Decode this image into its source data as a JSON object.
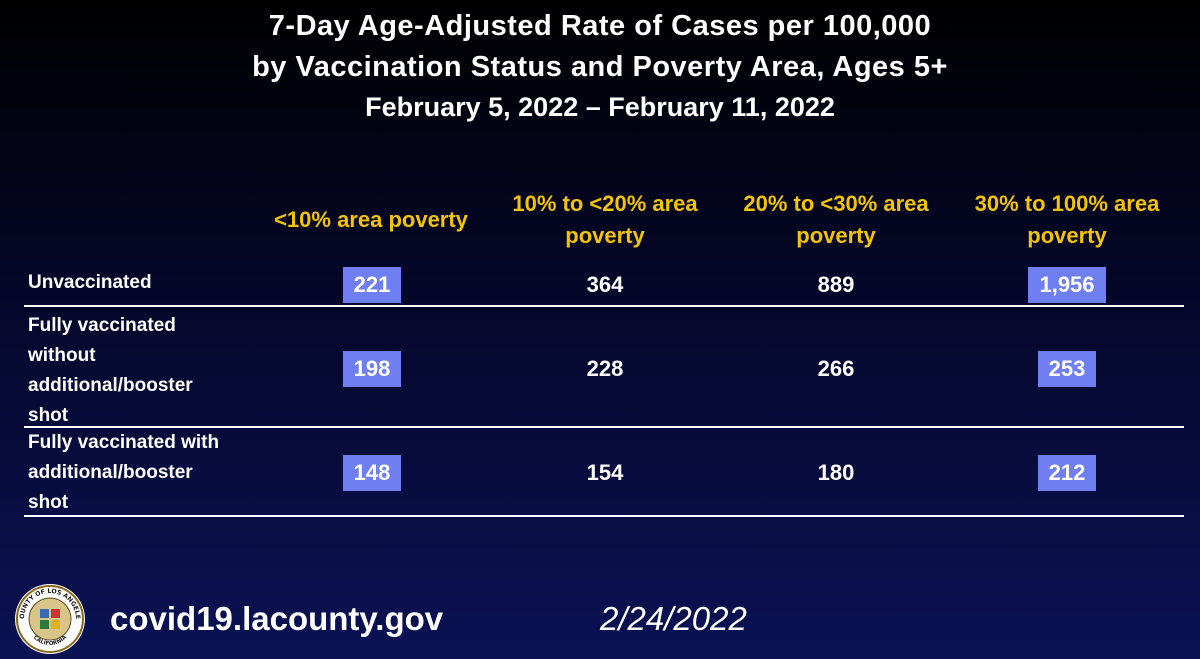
{
  "title": {
    "line1": "7-Day Age-Adjusted Rate of Cases per 100,000",
    "line2": "by Vaccination Status and Poverty Area, Ages 5+",
    "line3": "February 5, 2022 – February 11, 2022"
  },
  "columns": [
    {
      "line1": "<10% area poverty",
      "line2": ""
    },
    {
      "line1": "10% to <20% area",
      "line2": "poverty"
    },
    {
      "line1": "20% to <30% area",
      "line2": "poverty"
    },
    {
      "line1": "30% to 100% area",
      "line2": "poverty"
    }
  ],
  "rows": [
    {
      "label_lines": [
        "Unvaccinated"
      ],
      "values": [
        "221",
        "364",
        "889",
        "1,956"
      ],
      "highlighted": [
        true,
        false,
        false,
        true
      ]
    },
    {
      "label_lines": [
        "Fully vaccinated",
        "without",
        "additional/booster",
        "shot"
      ],
      "values": [
        "198",
        "228",
        "266",
        "253"
      ],
      "highlighted": [
        true,
        false,
        false,
        true
      ]
    },
    {
      "label_lines": [
        "Fully vaccinated with",
        "additional/booster",
        "shot"
      ],
      "values": [
        "148",
        "154",
        "180",
        "212"
      ],
      "highlighted": [
        true,
        false,
        false,
        true
      ]
    }
  ],
  "colors": {
    "header": "#f5c400",
    "highlight": "#6f7ef0",
    "background": "#05072a"
  },
  "footer": {
    "website": "covid19.lacounty.gov",
    "date": "2/24/2022",
    "seal": {
      "icon": "county-seal-icon",
      "top_text": "COUNTY OF LOS ANGELES",
      "bottom_text": "CALIFORNIA"
    }
  }
}
